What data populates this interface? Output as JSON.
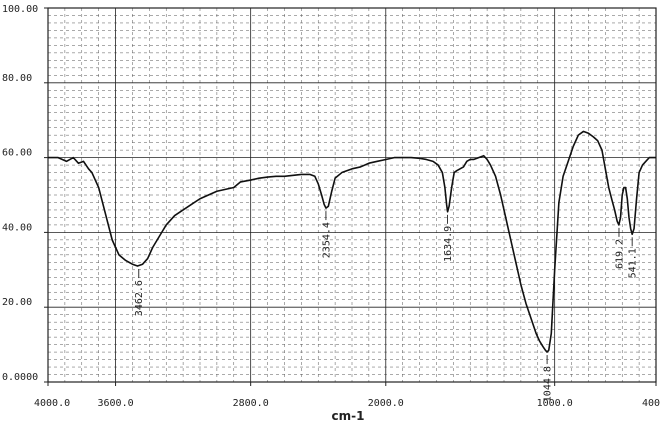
{
  "chart_data": {
    "type": "line",
    "xlabel": "cm-1",
    "ylabel": "",
    "xlim": [
      4000,
      400
    ],
    "ylim": [
      0,
      100
    ],
    "grid": true,
    "x_ticks": [
      {
        "value": 4000,
        "label": "4000.0"
      },
      {
        "value": 3600,
        "label": "3600.0"
      },
      {
        "value": 2800,
        "label": "2800.0"
      },
      {
        "value": 2000,
        "label": "2000.0"
      },
      {
        "value": 1000,
        "label": "1000.0"
      },
      {
        "value": 400,
        "label": "400"
      }
    ],
    "y_ticks": [
      {
        "value": 100,
        "label": "100.00"
      },
      {
        "value": 80,
        "label": "80.00"
      },
      {
        "value": 60,
        "label": "60.00"
      },
      {
        "value": 40,
        "label": "40.00"
      },
      {
        "value": 20,
        "label": "20.00"
      },
      {
        "value": 0,
        "label": "0.0000"
      }
    ],
    "peaks": [
      {
        "x": 3462.6,
        "y": 31.0,
        "label": "3462.6"
      },
      {
        "x": 2354.4,
        "y": 46.5,
        "label": "2354.4"
      },
      {
        "x": 1634.9,
        "y": 45.5,
        "label": "1634.9"
      },
      {
        "x": 1044.8,
        "y": 8.0,
        "label": "1044.8"
      },
      {
        "x": 619.2,
        "y": 42.0,
        "label": "619.2"
      },
      {
        "x": 541.1,
        "y": 39.5,
        "label": "541.1"
      }
    ],
    "series": [
      {
        "x": [
          4000,
          3940,
          3890,
          3850,
          3820,
          3790,
          3760,
          3740,
          3700,
          3660,
          3620,
          3580,
          3540,
          3500,
          3470,
          3440,
          3410,
          3380,
          3340,
          3300,
          3250,
          3200,
          3150,
          3100,
          3050,
          3000,
          2950,
          2900,
          2860,
          2800,
          2750,
          2700,
          2650,
          2600,
          2560,
          2500,
          2450,
          2420,
          2400,
          2380,
          2365,
          2354,
          2340,
          2320,
          2300,
          2260,
          2200,
          2150,
          2100,
          2050,
          2000,
          1950,
          1900,
          1850,
          1800,
          1760,
          1720,
          1690,
          1665,
          1650,
          1640,
          1634,
          1625,
          1610,
          1595,
          1580,
          1560,
          1540,
          1520,
          1500,
          1480,
          1450,
          1420,
          1400,
          1380,
          1350,
          1320,
          1290,
          1260,
          1230,
          1200,
          1170,
          1140,
          1110,
          1090,
          1070,
          1055,
          1045,
          1035,
          1020,
          1000,
          975,
          950,
          920,
          890,
          860,
          830,
          800,
          770,
          745,
          720,
          700,
          680,
          660,
          645,
          630,
          620,
          610,
          600,
          590,
          580,
          570,
          560,
          550,
          541,
          530,
          515,
          500,
          480,
          460,
          440,
          420,
          400
        ],
        "y": [
          60,
          60,
          59,
          60,
          58.5,
          59,
          57,
          56,
          52,
          45,
          38,
          34,
          32.5,
          31.5,
          31,
          31.5,
          33,
          36,
          39,
          42,
          44.5,
          46,
          47.5,
          49,
          50,
          51,
          51.5,
          52,
          53.5,
          54,
          54.5,
          54.8,
          55,
          55,
          55.2,
          55.5,
          55.5,
          55,
          53,
          50,
          47.5,
          46.5,
          47,
          51,
          54.5,
          56,
          57,
          57.5,
          58.5,
          59,
          59.5,
          60,
          60,
          60,
          59.8,
          59.5,
          59,
          58,
          56,
          52,
          47.5,
          45.5,
          47,
          52,
          56,
          56.5,
          57,
          57.5,
          59,
          59.5,
          59.5,
          60,
          60.5,
          59.5,
          58,
          55,
          50,
          44,
          38,
          32,
          26,
          21,
          17,
          13,
          11,
          9.5,
          8.5,
          8,
          8.5,
          13,
          30,
          48,
          55,
          59,
          63,
          66,
          67,
          66.5,
          65.5,
          64.5,
          62,
          57,
          52,
          48.5,
          46,
          43,
          42,
          44,
          50,
          52,
          52,
          49,
          44,
          41,
          39.5,
          41,
          49,
          56,
          58,
          59,
          60,
          60,
          60
        ]
      }
    ]
  }
}
